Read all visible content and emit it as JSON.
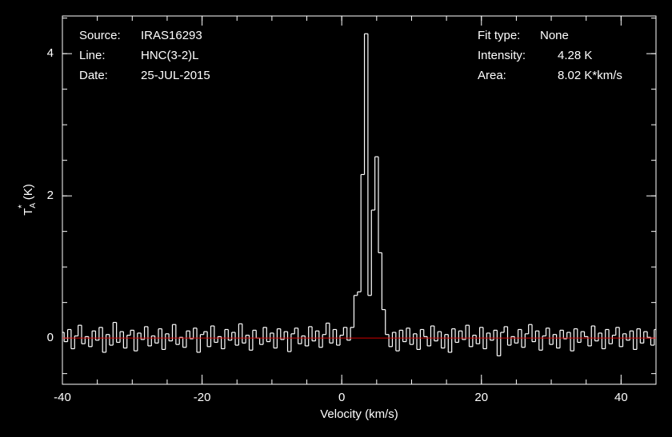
{
  "chart_data": {
    "type": "step",
    "info_left": [
      {
        "label": "Source:",
        "value": "IRAS16293"
      },
      {
        "label": "Line:",
        "value": "HNC(3-2)L"
      },
      {
        "label": "Date:",
        "value": "25-JUL-2015"
      }
    ],
    "info_right": [
      {
        "label": "Fit type:",
        "value": "None"
      },
      {
        "label": "Intensity:",
        "value": "4.28 K"
      },
      {
        "label": "Area:",
        "value": "8.02 K*km/s"
      }
    ],
    "xlabel": "Velocity (km/s)",
    "ylabel": {
      "main": "T",
      "sub": "A",
      "sup": "*",
      "unit": "(K)"
    },
    "xlim": [
      -40,
      45
    ],
    "ylim": [
      -0.65,
      4.53
    ],
    "xticks": [
      -40,
      -20,
      0,
      20,
      40
    ],
    "yticks": [
      0,
      2,
      4
    ],
    "baseline": 0,
    "baseline_color": "#d00000",
    "color": "#ffffff",
    "x": [
      -40,
      -39.5,
      -39,
      -38.5,
      -38,
      -37.5,
      -37,
      -36.5,
      -36,
      -35.5,
      -35,
      -34.5,
      -34,
      -33.5,
      -33,
      -32.5,
      -32,
      -31.5,
      -31,
      -30.5,
      -30,
      -29.5,
      -29,
      -28.5,
      -28,
      -27.5,
      -27,
      -26.5,
      -26,
      -25.5,
      -25,
      -24.5,
      -24,
      -23.5,
      -23,
      -22.5,
      -22,
      -21.5,
      -21,
      -20.5,
      -20,
      -19.5,
      -19,
      -18.5,
      -18,
      -17.5,
      -17,
      -16.5,
      -16,
      -15.5,
      -15,
      -14.5,
      -14,
      -13.5,
      -13,
      -12.5,
      -12,
      -11.5,
      -11,
      -10.5,
      -10,
      -9.5,
      -9,
      -8.5,
      -8,
      -7.5,
      -7,
      -6.5,
      -6,
      -5.5,
      -5,
      -4.5,
      -4,
      -3.5,
      -3,
      -2.5,
      -2,
      -1.5,
      -1,
      -0.5,
      0,
      0.5,
      1,
      1.5,
      2,
      2.5,
      3,
      3.5,
      4,
      4.5,
      5,
      5.5,
      6,
      6.5,
      7,
      7.5,
      8,
      8.5,
      9,
      9.5,
      10,
      10.5,
      11,
      11.5,
      12,
      12.5,
      13,
      13.5,
      14,
      14.5,
      15,
      15.5,
      16,
      16.5,
      17,
      17.5,
      18,
      18.5,
      19,
      19.5,
      20,
      20.5,
      21,
      21.5,
      22,
      22.5,
      23,
      23.5,
      24,
      24.5,
      25,
      25.5,
      26,
      26.5,
      27,
      27.5,
      28,
      28.5,
      29,
      29.5,
      30,
      30.5,
      31,
      31.5,
      32,
      32.5,
      33,
      33.5,
      34,
      34.5,
      35,
      35.5,
      36,
      36.5,
      37,
      37.5,
      38,
      38.5,
      39,
      39.5,
      40,
      40.5,
      41,
      41.5,
      42,
      42.5,
      43,
      43.5,
      44,
      44.5,
      45
    ],
    "values": [
      0.08,
      -0.05,
      0.12,
      -0.15,
      0.03,
      0.18,
      -0.08,
      0.02,
      -0.12,
      0.1,
      -0.03,
      0.15,
      -0.2,
      0.05,
      -0.1,
      0.22,
      -0.06,
      0.09,
      -0.14,
      0.04,
      0.11,
      -0.18,
      0.07,
      -0.02,
      0.16,
      -0.11,
      0.03,
      -0.07,
      0.13,
      -0.16,
      0.06,
      -0.04,
      0.19,
      -0.09,
      0.01,
      -0.13,
      0.1,
      -0.01,
      0.14,
      -0.2,
      0.05,
      0.09,
      -0.12,
      0.17,
      -0.06,
      0.02,
      -0.15,
      0.12,
      -0.03,
      0.08,
      -0.1,
      0.2,
      -0.07,
      0.04,
      -0.17,
      0.11,
      0.0,
      -0.09,
      0.15,
      -0.05,
      0.07,
      -0.14,
      0.13,
      -0.02,
      0.09,
      -0.19,
      0.06,
      0.14,
      -0.08,
      0.03,
      -0.11,
      0.16,
      -0.04,
      0.1,
      -0.13,
      0.05,
      0.21,
      -0.07,
      0.12,
      -0.1,
      0.04,
      0.15,
      -0.03,
      0.15,
      0.6,
      0.65,
      2.3,
      4.28,
      0.6,
      1.8,
      2.55,
      1.2,
      0.4,
      0.05,
      -0.12,
      0.08,
      -0.18,
      0.11,
      -0.05,
      0.14,
      -0.09,
      0.06,
      -0.16,
      0.12,
      0.02,
      -0.11,
      0.17,
      -0.04,
      0.09,
      -0.14,
      0.05,
      -0.2,
      0.13,
      -0.06,
      0.1,
      -0.02,
      0.18,
      -0.12,
      0.04,
      -0.08,
      0.15,
      -0.15,
      0.07,
      -0.03,
      0.11,
      -0.25,
      0.08,
      0.16,
      -0.1,
      0.02,
      -0.07,
      0.12,
      -0.13,
      0.06,
      0.19,
      -0.05,
      0.1,
      -0.17,
      0.03,
      0.14,
      -0.09,
      0.05,
      -0.14,
      0.11,
      -0.01,
      0.08,
      -0.18,
      0.13,
      -0.06,
      0.09,
      0.02,
      -0.11,
      0.17,
      -0.04,
      0.07,
      -0.15,
      0.12,
      -0.08,
      0.04,
      0.15,
      -0.12,
      0.06,
      -0.03,
      0.1,
      -0.16,
      0.13,
      -0.07,
      0.09,
      0.01,
      -0.1,
      0.12
    ]
  }
}
